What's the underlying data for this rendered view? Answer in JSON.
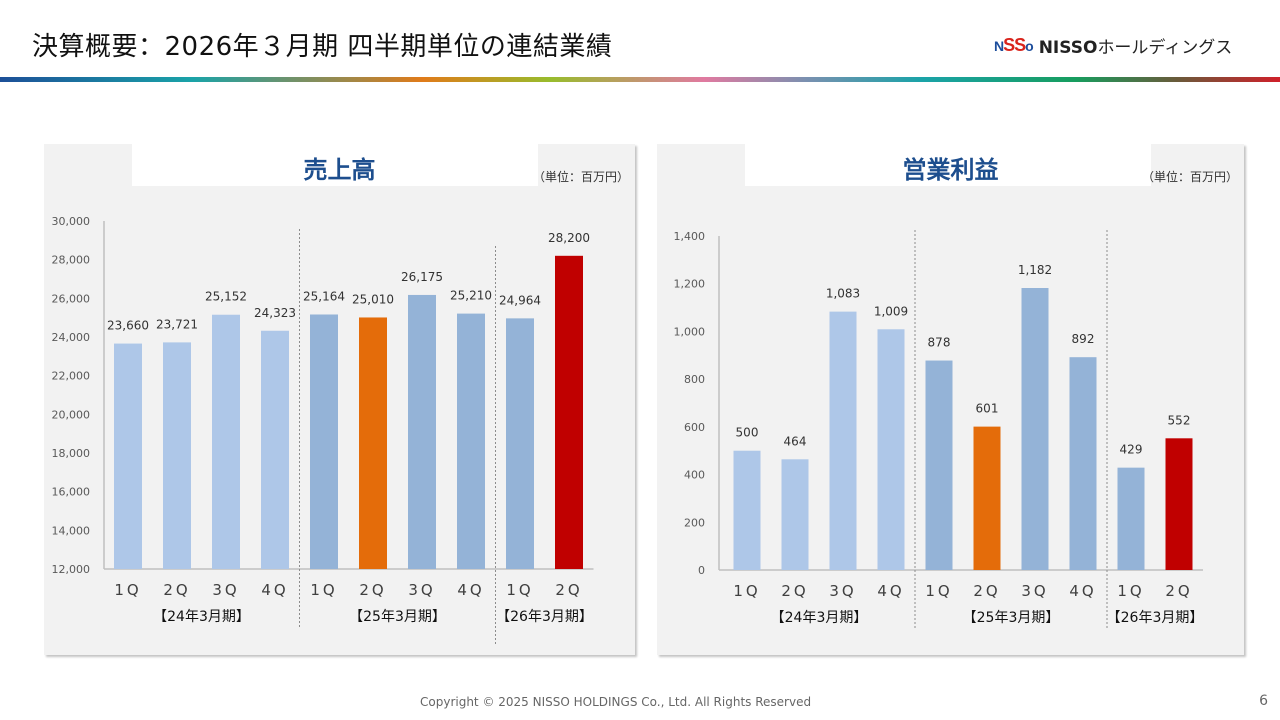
{
  "header": {
    "title": "決算概要：2026年３月期 四半期単位の連結業績",
    "logo_mark": [
      "N",
      "SS",
      "o"
    ],
    "logo_text": "NISSO",
    "logo_kana": "ホールディングス"
  },
  "colors": {
    "prior_year_bar": "#aec7e8",
    "mid_year_bar": "#94b3d7",
    "highlight_prev": "#e46c0a",
    "highlight_current": "#c00000",
    "title_blue": "#1d4e8e"
  },
  "chart_data": [
    {
      "type": "bar",
      "title": "売上高",
      "unit_label": "（単位：百万円）",
      "categories": [
        "1Q",
        "2Q",
        "3Q",
        "4Q",
        "1Q",
        "2Q",
        "3Q",
        "4Q",
        "1Q",
        "2Q"
      ],
      "values": [
        23660,
        23721,
        25152,
        24323,
        25164,
        25010,
        26175,
        25210,
        24964,
        28200
      ],
      "value_labels": [
        "23,660",
        "23,721",
        "25,152",
        "24,323",
        "25,164",
        "25,010",
        "26,175",
        "25,210",
        "24,964",
        "28,200"
      ],
      "bar_colors": [
        "#aec7e8",
        "#aec7e8",
        "#aec7e8",
        "#aec7e8",
        "#94b3d7",
        "#e46c0a",
        "#94b3d7",
        "#94b3d7",
        "#94b3d7",
        "#c00000"
      ],
      "groups": [
        {
          "label": "【24年3月期】",
          "count": 4
        },
        {
          "label": "【25年3月期】",
          "count": 4
        },
        {
          "label": "【26年3月期】",
          "count": 2
        }
      ],
      "ylim": [
        12000,
        30000
      ],
      "yticks": [
        12000,
        14000,
        16000,
        18000,
        20000,
        22000,
        24000,
        26000,
        28000,
        30000
      ],
      "ytick_labels": [
        "12,000",
        "14,000",
        "16,000",
        "18,000",
        "20,000",
        "22,000",
        "24,000",
        "26,000",
        "28,000",
        "30,000"
      ],
      "xlabel": "",
      "ylabel": "",
      "grid": false,
      "legend": "none"
    },
    {
      "type": "bar",
      "title": "営業利益",
      "unit_label": "（単位：百万円）",
      "categories": [
        "1Q",
        "2Q",
        "3Q",
        "4Q",
        "1Q",
        "2Q",
        "3Q",
        "4Q",
        "1Q",
        "2Q"
      ],
      "values": [
        500,
        464,
        1083,
        1009,
        878,
        601,
        1182,
        892,
        429,
        552
      ],
      "value_labels": [
        "500",
        "464",
        "1,083",
        "1,009",
        "878",
        "601",
        "1,182",
        "892",
        "429",
        "552"
      ],
      "bar_colors": [
        "#aec7e8",
        "#aec7e8",
        "#aec7e8",
        "#aec7e8",
        "#94b3d7",
        "#e46c0a",
        "#94b3d7",
        "#94b3d7",
        "#94b3d7",
        "#c00000"
      ],
      "groups": [
        {
          "label": "【24年3月期】",
          "count": 4
        },
        {
          "label": "【25年3月期】",
          "count": 4
        },
        {
          "label": "【26年3月期】",
          "count": 2
        }
      ],
      "ylim": [
        0,
        1400
      ],
      "yticks": [
        0,
        200,
        400,
        600,
        800,
        1000,
        1200,
        1400
      ],
      "ytick_labels": [
        "0",
        "200",
        "400",
        "600",
        "800",
        "1,000",
        "1,200",
        "1,400"
      ],
      "xlabel": "",
      "ylabel": "",
      "grid": false,
      "legend": "none"
    }
  ],
  "footer": {
    "copyright": "Copyright © 2025 NISSO HOLDINGS Co., Ltd. All Rights Reserved",
    "page_number": "6"
  }
}
